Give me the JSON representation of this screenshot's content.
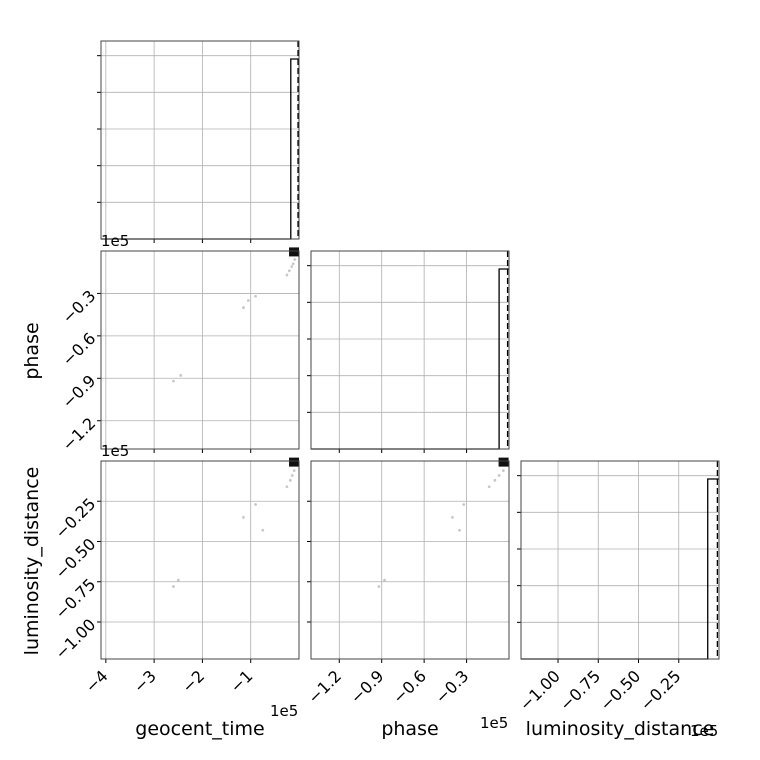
{
  "chart_data": {
    "type": "corner",
    "parameters": [
      "geocent_time",
      "phase",
      "luminosity_distance"
    ],
    "axis_labels": {
      "geocent_time": "geocent_time",
      "phase": "phase",
      "luminosity_distance": "luminosity_distance"
    },
    "scale_label": "1e5",
    "ranges": {
      "geocent_time": [
        -410000,
        0
      ],
      "phase": [
        -140000,
        0
      ],
      "luminosity_distance": [
        -123000.0,
        0
      ]
    },
    "ticks": {
      "geocent_time": {
        "values": [
          -400000,
          -300000,
          -200000,
          -100000
        ],
        "labels": [
          "−4",
          "−3",
          "−2",
          "−1"
        ]
      },
      "phase": {
        "values": [
          -120000,
          -90000,
          -60000,
          -30000
        ],
        "labels": [
          "−1.2",
          "−0.9",
          "−0.6",
          "−0.3"
        ]
      },
      "luminosity_distance": {
        "values": [
          -100000,
          -75000,
          -50000,
          -25000
        ],
        "labels": [
          "−1.00",
          "−0.75",
          "−0.50",
          "−0.25"
        ]
      }
    },
    "histograms": {
      "geocent_time": {
        "spike_at": -17000,
        "dashed_at": -2000
      },
      "phase": {
        "spike_at": -7000,
        "dashed_at": -1000
      },
      "luminosity_distance": {
        "spike_at": -7000,
        "dashed_at": -1000
      }
    },
    "scatter": {
      "phase_vs_geocent_time": [
        [
          -2000,
          -1000
        ],
        [
          -9000,
          -6000
        ],
        [
          -12000,
          -9000
        ],
        [
          -15000,
          -11000
        ],
        [
          -20000,
          -14000
        ],
        [
          -25000,
          -17000
        ],
        [
          -90000,
          -32000
        ],
        [
          -105000,
          -35000
        ],
        [
          -115000,
          -40000
        ],
        [
          -245000,
          -88000
        ],
        [
          -260000,
          -92000
        ]
      ],
      "luminosity_distance_vs_geocent_time": [
        [
          -2000,
          -1000
        ],
        [
          -10000,
          -6000
        ],
        [
          -14000,
          -9000
        ],
        [
          -18000,
          -12000
        ],
        [
          -25000,
          -16000
        ],
        [
          -90000,
          -27000
        ],
        [
          -115000,
          -35000
        ],
        [
          -75000,
          -43000
        ],
        [
          -250000,
          -74000
        ],
        [
          -260000,
          -78000
        ]
      ],
      "luminosity_distance_vs_phase": [
        [
          -1000,
          -1000
        ],
        [
          -4000,
          -6000
        ],
        [
          -7000,
          -9000
        ],
        [
          -10000,
          -12000
        ],
        [
          -14000,
          -16000
        ],
        [
          -32000,
          -27000
        ],
        [
          -40000,
          -35000
        ],
        [
          -35000,
          -43000
        ],
        [
          -88000,
          -74000
        ],
        [
          -92000,
          -78000
        ]
      ]
    },
    "grid": true
  }
}
